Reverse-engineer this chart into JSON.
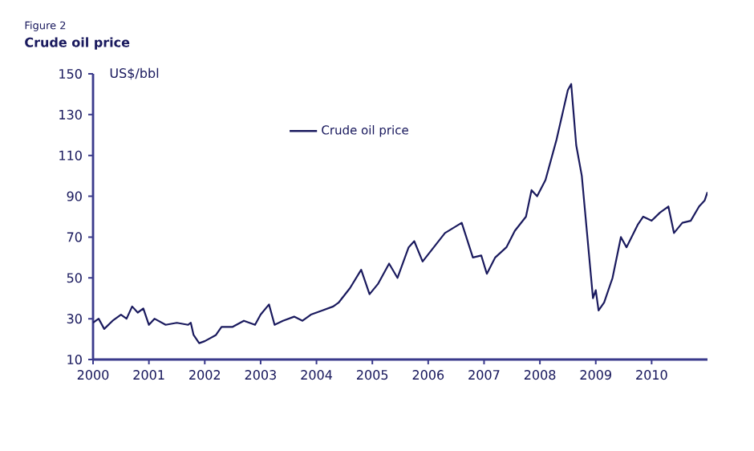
{
  "chart_data": {
    "type": "line",
    "title": "Crude oil price",
    "annotations": [
      "Figure 2"
    ],
    "ylabel": "US$/bbl",
    "xlim": [
      2000,
      2011
    ],
    "xticks": [
      2000,
      2001,
      2002,
      2003,
      2004,
      2005,
      2006,
      2007,
      2008,
      2009,
      2010
    ],
    "ylim": [
      10,
      150
    ],
    "yticks": [
      10,
      30,
      50,
      70,
      90,
      110,
      130,
      150
    ],
    "grid": false,
    "legend": "top",
    "marker": "none",
    "line_style": "solid",
    "x": [
      2000.0,
      2000.1,
      2000.2,
      2000.35,
      2000.5,
      2000.6,
      2000.7,
      2000.8,
      2000.9,
      2001.0,
      2001.1,
      2001.3,
      2001.5,
      2001.7,
      2001.75,
      2001.8,
      2001.9,
      2002.0,
      2002.2,
      2002.3,
      2002.5,
      2002.7,
      2002.9,
      2003.0,
      2003.15,
      2003.25,
      2003.4,
      2003.6,
      2003.75,
      2003.9,
      2004.1,
      2004.3,
      2004.4,
      2004.6,
      2004.8,
      2004.95,
      2005.1,
      2005.3,
      2005.45,
      2005.65,
      2005.75,
      2005.9,
      2006.1,
      2006.3,
      2006.6,
      2006.8,
      2006.95,
      2007.05,
      2007.2,
      2007.4,
      2007.55,
      2007.75,
      2007.85,
      2007.95,
      2008.1,
      2008.3,
      2008.5,
      2008.56,
      2008.65,
      2008.75,
      2008.85,
      2008.95,
      2009.0,
      2009.05,
      2009.15,
      2009.3,
      2009.45,
      2009.55,
      2009.75,
      2009.85,
      2010.0,
      2010.15,
      2010.3,
      2010.4,
      2010.55,
      2010.7,
      2010.85,
      2010.95,
      2011.0
    ],
    "series": [
      {
        "name": "Crude oil price",
        "color": "#1a1a5e",
        "values": [
          28,
          30,
          25,
          29,
          32,
          30,
          36,
          33,
          35,
          27,
          30,
          27,
          28,
          27,
          28,
          22,
          18,
          19,
          22,
          26,
          26,
          29,
          27,
          32,
          37,
          27,
          29,
          31,
          29,
          32,
          34,
          36,
          38,
          45,
          54,
          42,
          47,
          57,
          50,
          65,
          68,
          58,
          65,
          72,
          77,
          60,
          61,
          52,
          60,
          65,
          73,
          80,
          93,
          90,
          98,
          118,
          142,
          145,
          115,
          100,
          70,
          40,
          44,
          34,
          38,
          50,
          70,
          65,
          76,
          80,
          78,
          82,
          85,
          72,
          77,
          78,
          85,
          88,
          92
        ]
      }
    ]
  }
}
